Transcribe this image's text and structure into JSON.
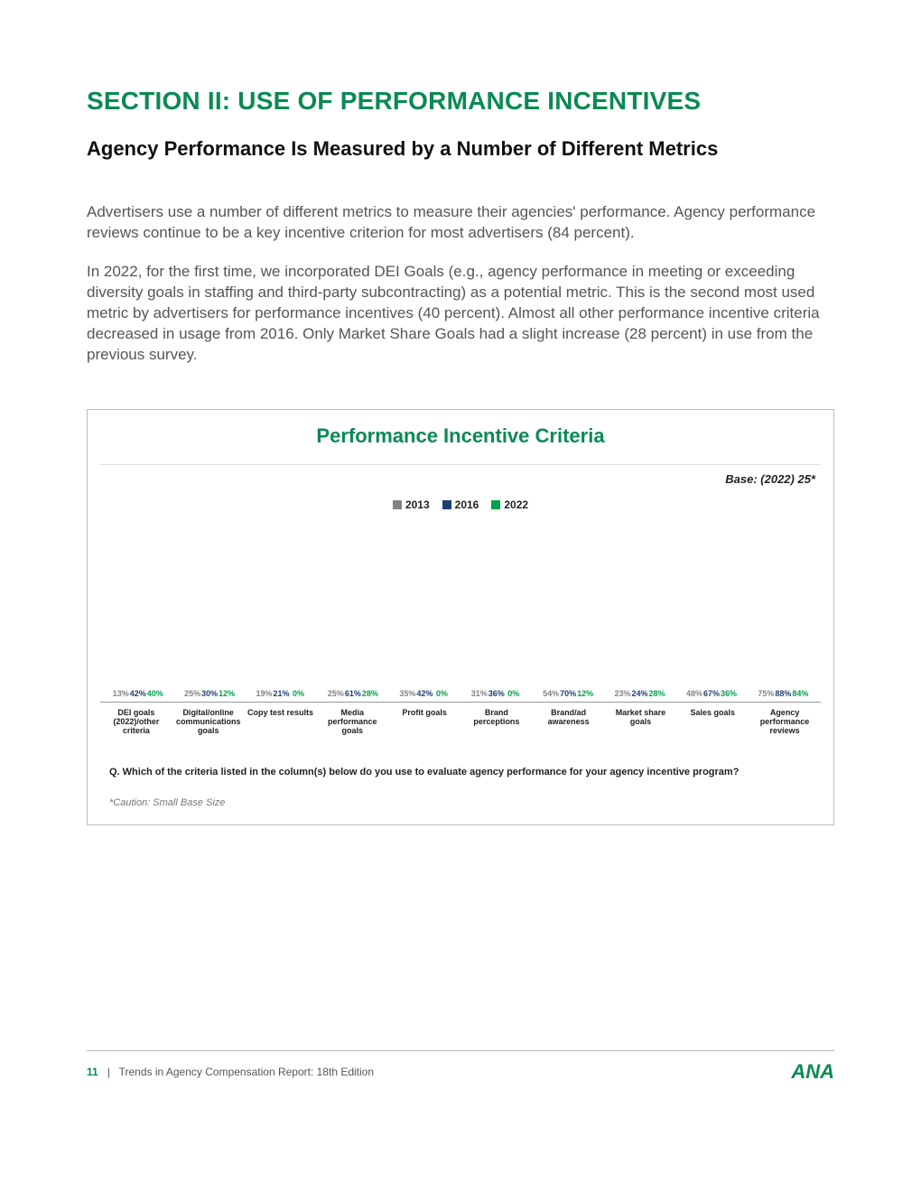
{
  "colors": {
    "brand_green": "#0a8a52",
    "series_gray": "#808285",
    "series_navy": "#1f3f75",
    "series_green": "#00a34a",
    "text_muted": "#555555"
  },
  "section_title": "SECTION II: USE OF PERFORMANCE INCENTIVES",
  "subtitle": "Agency Performance Is Measured by a Number of Different Metrics",
  "paragraphs": [
    "Advertisers use a number of different metrics to measure their agencies' performance. Agency performance reviews continue to be a key incentive criterion for most advertisers (84 percent).",
    "In 2022, for the first time, we incorporated DEI Goals (e.g., agency performance in meeting or exceeding diversity goals in staffing and third-party subcontracting) as a potential metric. This is the second most used metric by advertisers for performance incentives (40 percent). Almost all other performance incentive criteria decreased in usage from 2016. Only Market Share Goals had a slight increase (28 percent) in use from the previous survey."
  ],
  "chart": {
    "title": "Performance Incentive Criteria",
    "base_note": "Base: (2022) 25*",
    "legend": [
      "2013",
      "2016",
      "2022"
    ],
    "ymax": 95,
    "categories": [
      {
        "label": "DEI goals (2022)/other criteria",
        "y2013": 13,
        "y2016": 42,
        "y2022": 40
      },
      {
        "label": "Digital/online communications goals",
        "y2013": 25,
        "y2016": 30,
        "y2022": 12
      },
      {
        "label": "Copy test results",
        "y2013": 19,
        "y2016": 21,
        "y2022": 0
      },
      {
        "label": "Media performance goals",
        "y2013": 25,
        "y2016": 61,
        "y2022": 28
      },
      {
        "label": "Profit goals",
        "y2013": 35,
        "y2016": 42,
        "y2022": 0
      },
      {
        "label": "Brand perceptions",
        "y2013": 31,
        "y2016": 36,
        "y2022": 0
      },
      {
        "label": "Brand/ad awareness",
        "y2013": 54,
        "y2016": 70,
        "y2022": 12
      },
      {
        "label": "Market share goals",
        "y2013": 23,
        "y2016": 24,
        "y2022": 28
      },
      {
        "label": "Sales goals",
        "y2013": 48,
        "y2016": 67,
        "y2022": 36
      },
      {
        "label": "Agency performance reviews",
        "y2013": 75,
        "y2016": 88,
        "y2022": 84
      }
    ],
    "question": "Q. Which of the criteria listed in the column(s) below do you use to evaluate agency performance for your agency incentive program?",
    "caution": "*Caution: Small Base Size"
  },
  "footer": {
    "page_number": "11",
    "separator": "|",
    "doc_title": "Trends in Agency Compensation Report: 18th Edition",
    "logo_text": "ANA"
  }
}
